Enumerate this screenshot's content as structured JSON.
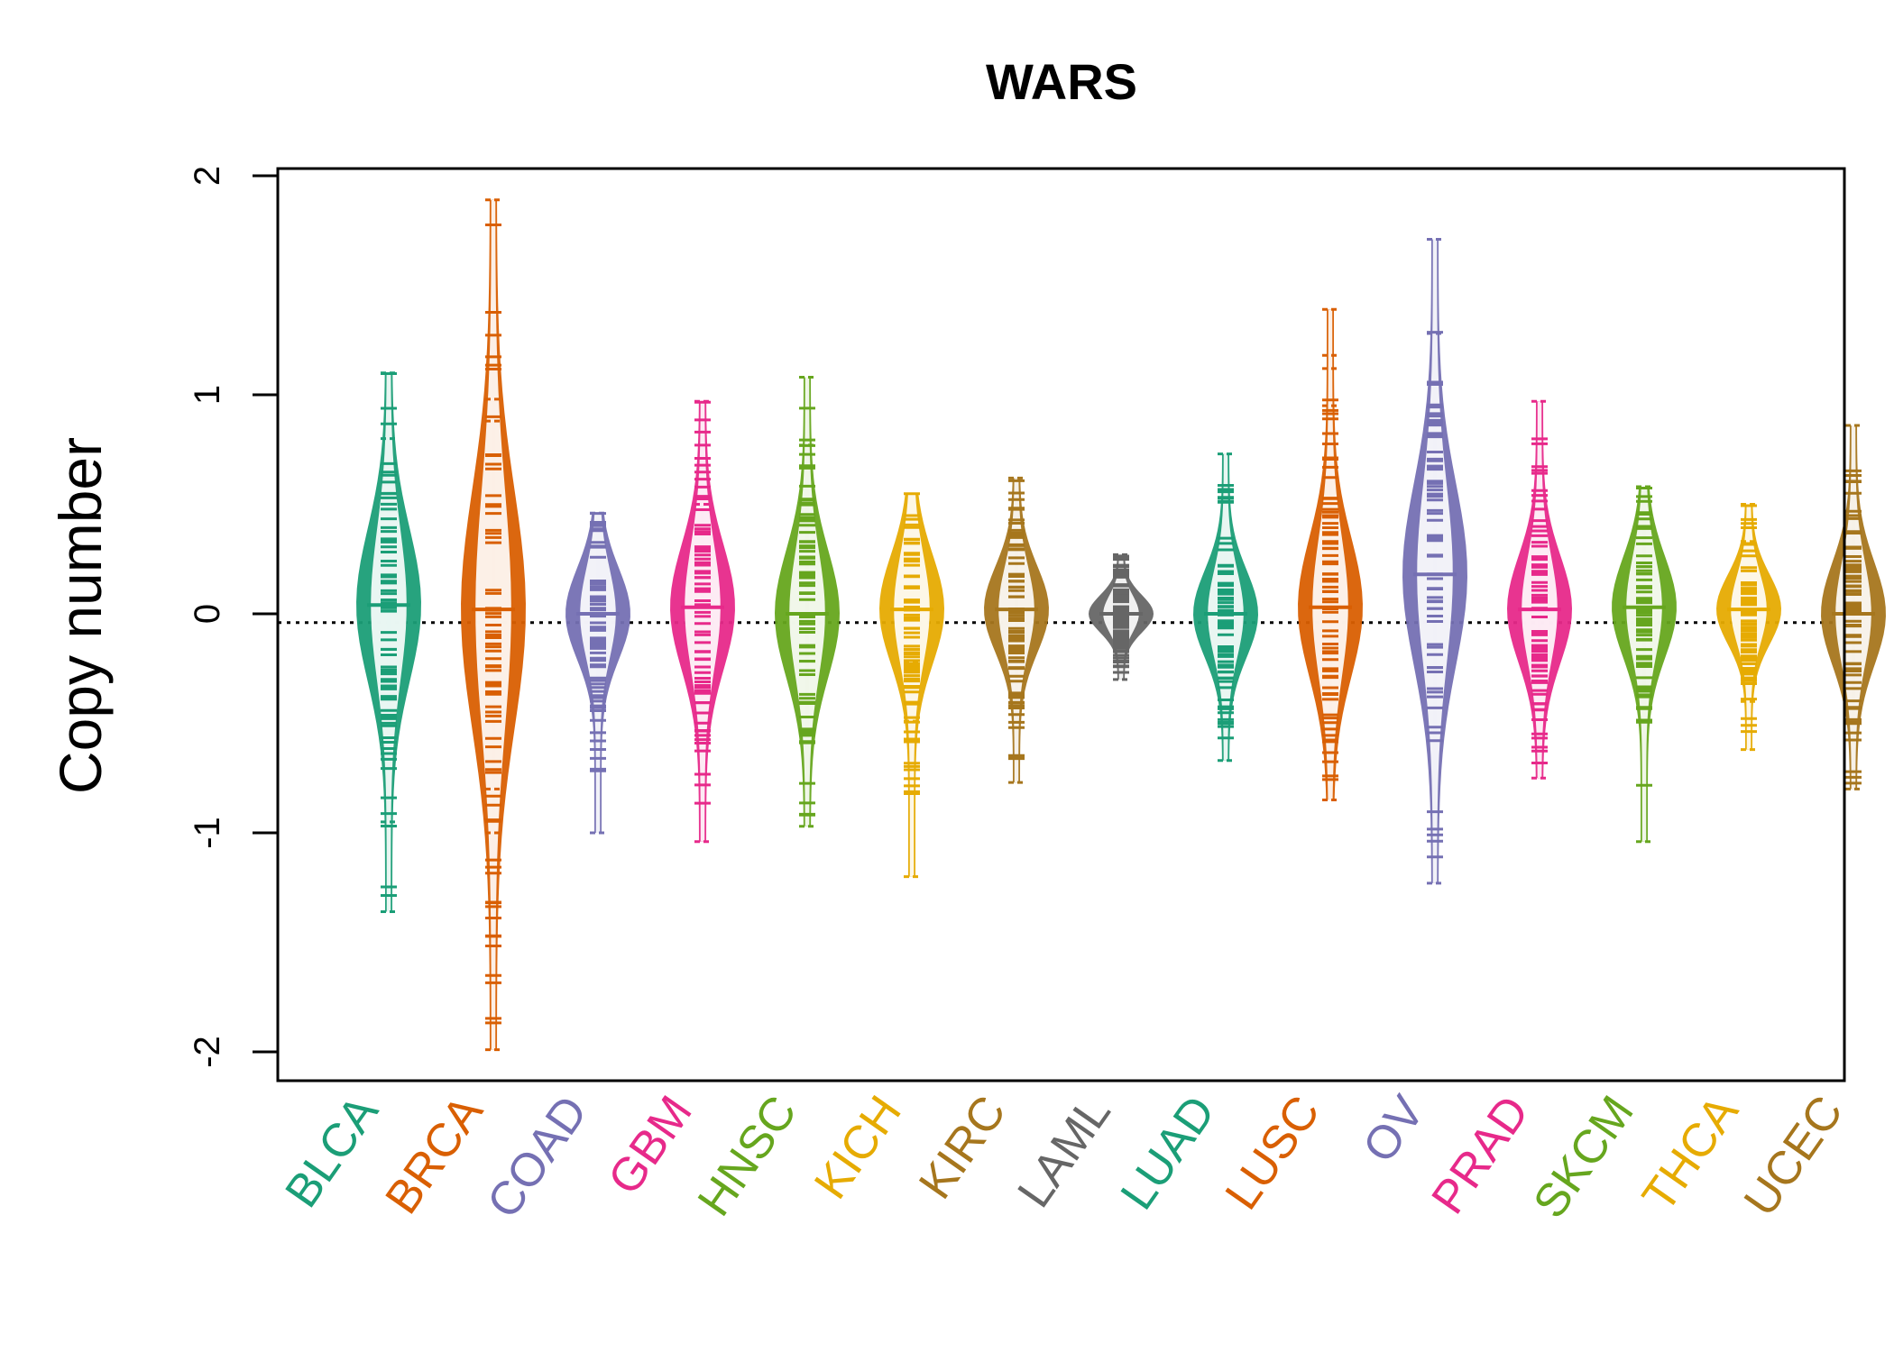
{
  "chart_data": {
    "type": "beanplot",
    "title": "WARS",
    "ylabel": "Copy number",
    "xlabel": "",
    "ylim": [
      -2.1,
      2.02
    ],
    "yticks": [
      -2,
      -1,
      0,
      1,
      2
    ],
    "ytick_labels": [
      "-2",
      "-1",
      "0",
      "1",
      "2"
    ],
    "reference_line": -0.04,
    "categories": [
      "BLCA",
      "BRCA",
      "COAD",
      "GBM",
      "HNSC",
      "KICH",
      "KIRC",
      "LAML",
      "LUAD",
      "LUSC",
      "OV",
      "PRAD",
      "SKCM",
      "THCA",
      "UCEC"
    ],
    "colors": [
      "#1b9e77",
      "#d95f02",
      "#7570b3",
      "#e7298a",
      "#66a61e",
      "#e6ab02",
      "#a6761d",
      "#666666",
      "#1b9e77",
      "#d95f02",
      "#7570b3",
      "#e7298a",
      "#66a61e",
      "#e6ab02",
      "#a6761d"
    ],
    "series": [
      {
        "category": "BLCA",
        "median": 0.04,
        "min": -1.36,
        "max": 1.1,
        "outliers": [
          1.1,
          0.8,
          -0.95,
          -1.36
        ]
      },
      {
        "category": "BRCA",
        "median": 0.02,
        "min": -1.99,
        "max": 1.89,
        "outliers": [
          1.89,
          0.98,
          0.88,
          -0.8,
          -1.0,
          -1.99
        ]
      },
      {
        "category": "COAD",
        "median": 0.0,
        "min": -1.0,
        "max": 0.46,
        "outliers": [
          0.46,
          -1.0
        ]
      },
      {
        "category": "GBM",
        "median": 0.03,
        "min": -1.04,
        "max": 0.97,
        "outliers": [
          0.97,
          0.5,
          -1.04
        ]
      },
      {
        "category": "HNSC",
        "median": 0.0,
        "min": -0.97,
        "max": 1.08,
        "outliers": [
          1.08,
          0.77,
          -0.97
        ]
      },
      {
        "category": "KICH",
        "median": 0.02,
        "min": -1.2,
        "max": 0.55,
        "outliers": [
          -0.22,
          -0.49,
          -1.2
        ]
      },
      {
        "category": "KIRC",
        "median": 0.02,
        "min": -0.77,
        "max": 0.62,
        "outliers": [
          0.62,
          -0.77
        ]
      },
      {
        "category": "LAML",
        "median": 0.0,
        "min": -0.3,
        "max": 0.27,
        "outliers": [
          0.27,
          -0.3
        ]
      },
      {
        "category": "LUAD",
        "median": 0.0,
        "min": -0.67,
        "max": 0.73,
        "outliers": [
          0.73,
          -0.67
        ]
      },
      {
        "category": "LUSC",
        "median": 0.03,
        "min": -0.85,
        "max": 1.39,
        "outliers": [
          1.39,
          1.18,
          1.12,
          0.95,
          -0.85
        ]
      },
      {
        "category": "OV",
        "median": 0.18,
        "min": -1.23,
        "max": 1.71,
        "outliers": [
          1.71,
          1.28,
          -1.23
        ]
      },
      {
        "category": "PRAD",
        "median": 0.02,
        "min": -0.75,
        "max": 0.97,
        "outliers": [
          0.97,
          -0.75
        ]
      },
      {
        "category": "SKCM",
        "median": 0.03,
        "min": -1.04,
        "max": 0.58,
        "outliers": [
          0.58,
          -1.04
        ]
      },
      {
        "category": "THCA",
        "median": 0.02,
        "min": -0.62,
        "max": 0.5,
        "outliers": [
          0.5,
          0.33,
          -0.4,
          -0.62
        ]
      },
      {
        "category": "UCEC",
        "median": 0.0,
        "min": -0.8,
        "max": 0.86,
        "outliers": [
          0.86,
          -0.8
        ]
      }
    ],
    "grid": false,
    "legend": "none"
  }
}
